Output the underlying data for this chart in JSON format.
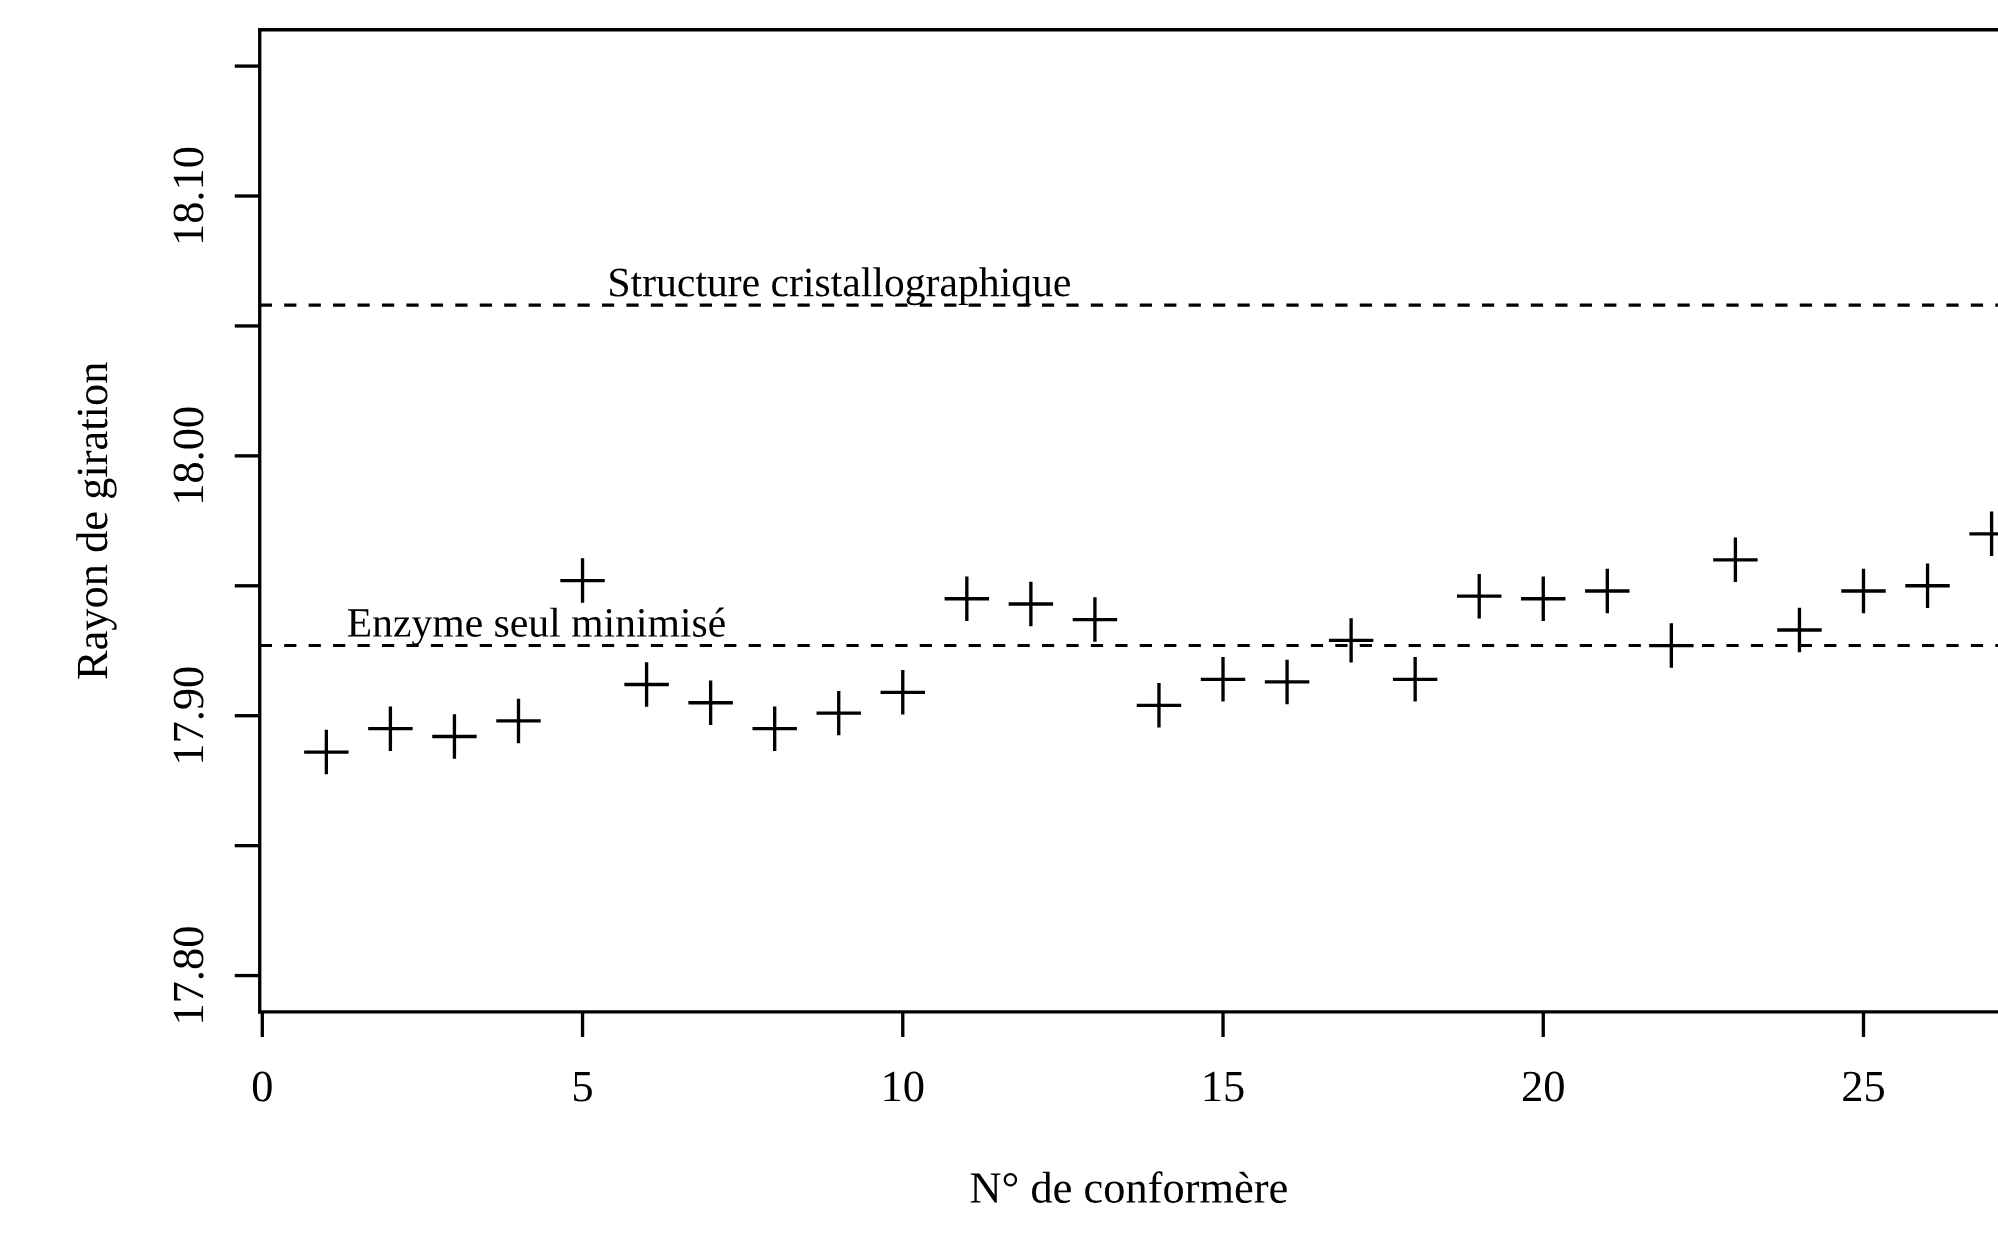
{
  "chart_data": {
    "type": "scatter",
    "xlabel": "N° de conformère",
    "ylabel": "Rayon de giration",
    "x": [
      1,
      2,
      3,
      4,
      5,
      6,
      7,
      8,
      9,
      10,
      11,
      12,
      13,
      14,
      15,
      16,
      17,
      18,
      19,
      20,
      21,
      22,
      23,
      24,
      25,
      26,
      27
    ],
    "series": [
      {
        "color": "#000000",
        "values": [
          17.886,
          17.895,
          17.892,
          17.898,
          17.952,
          17.912,
          17.905,
          17.895,
          17.901,
          17.909,
          17.945,
          17.943,
          17.937,
          17.904,
          17.914,
          17.913,
          17.929,
          17.914,
          17.946,
          17.945,
          17.948,
          17.927,
          17.96,
          17.933,
          17.948,
          17.95,
          17.97
        ]
      }
    ],
    "marker": "cross",
    "xlim": [
      -0.04,
      27.1
    ],
    "xticks": [
      0,
      5,
      10,
      15,
      20,
      25
    ],
    "ylim": [
      17.786,
      18.164
    ],
    "yticks": [
      {
        "value": 17.8,
        "label": "17.80"
      },
      {
        "value": 17.85,
        "label": null
      },
      {
        "value": 17.9,
        "label": "17.90"
      },
      {
        "value": 17.95,
        "label": null
      },
      {
        "value": 18.0,
        "label": "18.00"
      },
      {
        "value": 18.05,
        "label": null
      },
      {
        "value": 18.1,
        "label": "18.10"
      },
      {
        "value": 18.15,
        "label": null
      }
    ],
    "ref_lines": [
      {
        "axis": "y",
        "value": 18.058,
        "label": "Structure cristallographique",
        "color": "#000000",
        "line_style": "dashed"
      },
      {
        "axis": "y",
        "value": 17.927,
        "label": "Enzyme seul minimisé",
        "color": "#000000",
        "line_style": "dashed"
      }
    ],
    "grid": false,
    "legend": false
  }
}
